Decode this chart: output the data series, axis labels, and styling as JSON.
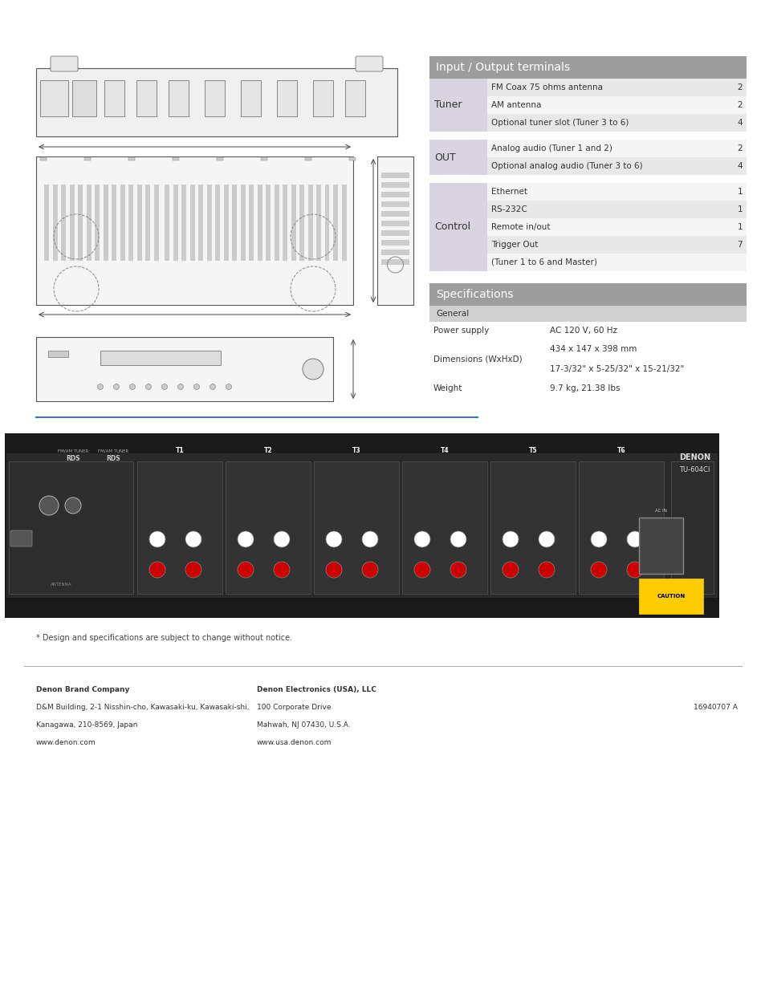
{
  "bg_color": "#ffffff",
  "page_width": 9.54,
  "page_height": 12.35,
  "table_title": "Input / Output terminals",
  "table_header_color": "#9d9d9d",
  "table_header_text_color": "#ffffff",
  "table_row_light": "#f0f0f0",
  "table_row_dark": "#e0dde8",
  "table_label_col_color": "#d9d5e0",
  "io_sections": [
    {
      "label": "Tuner",
      "rows": [
        {
          "desc": "FM Coax 75 ohms antenna",
          "val": "2",
          "shaded": true
        },
        {
          "desc": "AM antenna",
          "val": "2",
          "shaded": false
        },
        {
          "desc": "Optional tuner slot (Tuner 3 to 6)",
          "val": "4",
          "shaded": true
        }
      ]
    },
    {
      "label": "OUT",
      "rows": [
        {
          "desc": "Analog audio (Tuner 1 and 2)",
          "val": "2",
          "shaded": false
        },
        {
          "desc": "Optional analog audio (Tuner 3 to 6)",
          "val": "4",
          "shaded": true
        }
      ]
    },
    {
      "label": "Control",
      "rows": [
        {
          "desc": "Ethernet",
          "val": "1",
          "shaded": false
        },
        {
          "desc": "RS-232C",
          "val": "1",
          "shaded": true
        },
        {
          "desc": "Remote in/out",
          "val": "1",
          "shaded": false
        },
        {
          "desc": "Trigger Out",
          "val": "7",
          "shaded": true
        },
        {
          "desc": "(Tuner 1 to 6 and Master)",
          "val": "",
          "shaded": false
        }
      ]
    }
  ],
  "spec_title": "Specifications",
  "spec_general_label": "General",
  "spec_rows": [
    {
      "label": "Power supply",
      "value": "AC 120 V, 60 Hz"
    },
    {
      "label": "Dimensions (WxHxD)",
      "value": "434 x 147 x 398 mm\n17-3/32\" x 5-25/32\" x 15-21/32\""
    },
    {
      "label": "Weight",
      "value": "9.7 kg, 21.38 lbs"
    }
  ],
  "footer_note": "* Design and specifications are subject to change without notice.",
  "company_left_lines": [
    "Denon Brand Company",
    "D&M Building, 2-1 Nisshin-cho, Kawasaki-ku, Kawasaki-shi,",
    "Kanagawa, 210-8569, Japan",
    "www.denon.com"
  ],
  "company_right_lines": [
    "Denon Electronics (USA), LLC",
    "100 Corporate Drive",
    "Mahwah, NJ 07430, U.S.A.",
    "www.usa.denon.com"
  ],
  "doc_number": "16940707 A",
  "blue_line_color": "#4472c4",
  "separator_line_color": "#aaaaaa"
}
